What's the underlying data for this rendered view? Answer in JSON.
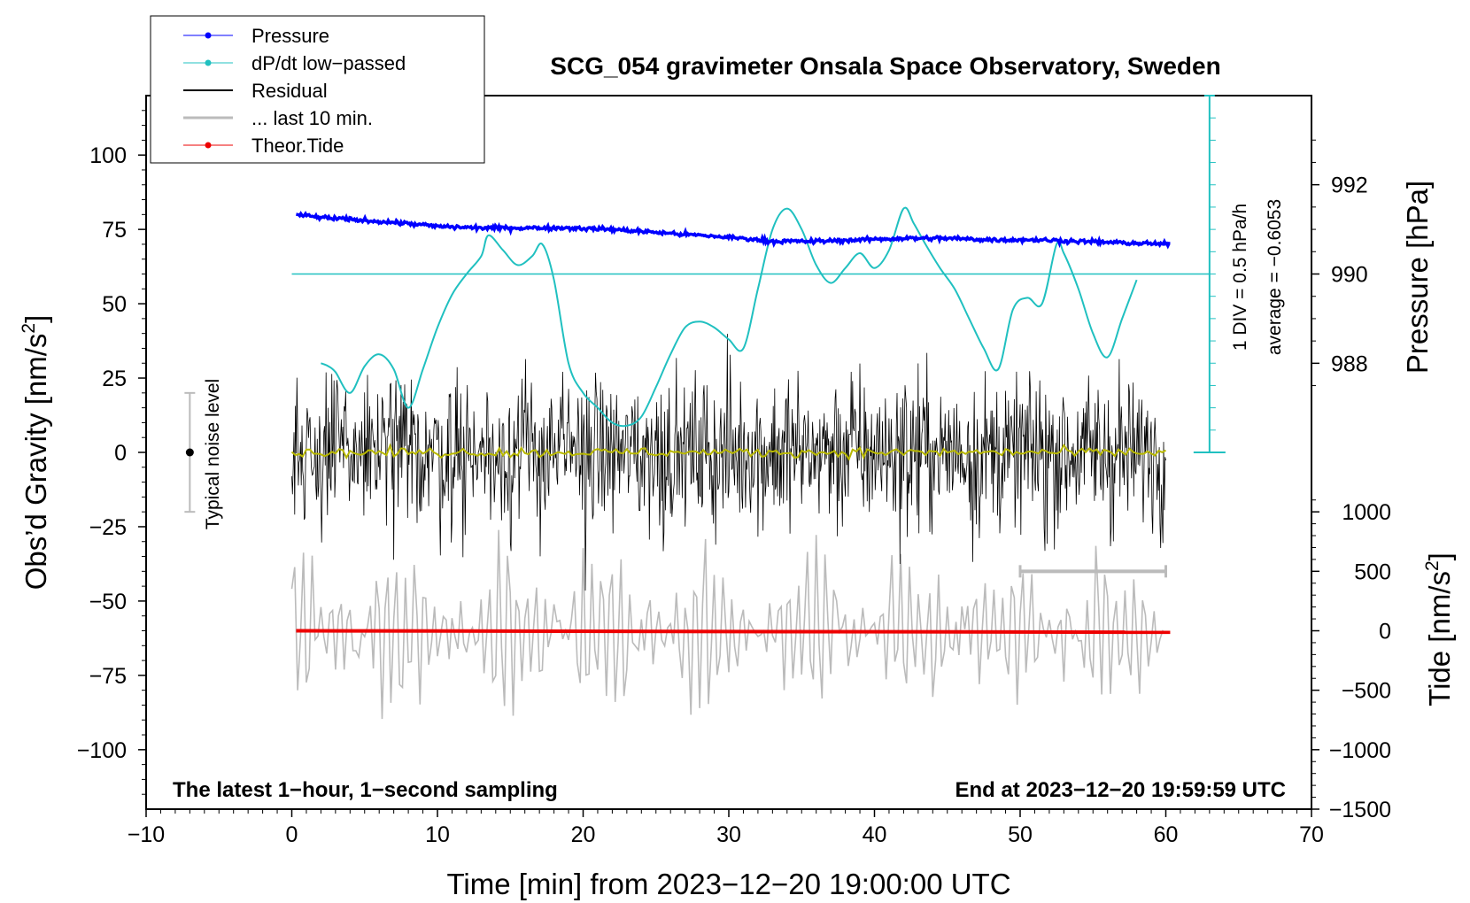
{
  "chart_data": {
    "type": "line",
    "title": "SCG_054 gravimeter Onsala Space Observatory, Sweden",
    "xlabel": "Time [min] from 2023−12−20 19:00:00 UTC",
    "ylabel_left": "Obs’d Gravity [nm/s",
    "ylabel_left_sup": "2",
    "ylabel_left_end": "]",
    "ylabel_right_top": "Pressure [hPa]",
    "ylabel_right_bottom": "Tide [nm/s",
    "ylabel_right_bottom_sup": "2",
    "ylabel_right_bottom_end": "]",
    "xlim": [
      -10,
      70
    ],
    "ylim_left": [
      -120,
      120
    ],
    "xticks": [
      "−10",
      "0",
      "10",
      "20",
      "30",
      "40",
      "50",
      "60",
      "70"
    ],
    "xtick_values": [
      -10,
      0,
      10,
      20,
      30,
      40,
      50,
      60,
      70
    ],
    "yticks_left": [
      "100",
      "75",
      "50",
      "25",
      "0",
      "−25",
      "−50",
      "−75",
      "−100"
    ],
    "ytick_values_left": [
      100,
      75,
      50,
      25,
      0,
      -25,
      -50,
      -75,
      -100
    ],
    "pressure_ticks": [
      "992",
      "990",
      "988"
    ],
    "pressure_tick_values": [
      992,
      990,
      988
    ],
    "pressure_scale": {
      "value_at_gravity_60": 990,
      "hpa_per_gravity_unit": 0.0666
    },
    "tide_ticks": [
      "1000",
      "500",
      "0",
      "−500",
      "−1000",
      "−1500"
    ],
    "tide_tick_values": [
      1000,
      500,
      0,
      -500,
      -1000,
      -1500
    ],
    "tide_scale": {
      "value_at_gravity_minus60": 0,
      "nms2_per_gravity_unit": 25
    },
    "legend": [
      {
        "label": "Pressure",
        "color": "#0000ff",
        "style": "line-dot"
      },
      {
        "label": "dP/dt low−passed",
        "color": "#20c0c0",
        "style": "line-dot"
      },
      {
        "label": "Residual",
        "color": "#000000",
        "style": "line"
      },
      {
        "label": "... last 10 min.",
        "color": "#bbbbbb",
        "style": "thick-line"
      },
      {
        "label": "Theor.Tide",
        "color": "#ee0000",
        "style": "line-dot"
      }
    ],
    "legend_placement": "top-left",
    "annotations": {
      "bottom_left": "The latest 1−hour, 1−second sampling",
      "bottom_right": "End at 2023−12−20 19:59:59 UTC",
      "noise_label": "Typical noise level",
      "noise_range": [
        -20,
        20
      ],
      "noise_x": -7,
      "dpdt_div": "1 DIV = 0.5 hPa/h",
      "dpdt_average": "average = −0.6053",
      "dpdt_scale_x": 63,
      "dpdt_scale_range": [
        0,
        120
      ],
      "dpdt_baseline_gravity": 60,
      "last10_range_x": [
        50,
        60
      ]
    },
    "colors": {
      "pressure": "#0000ff",
      "dpdt": "#20c0c0",
      "residual": "#000000",
      "residual_mean": "#b8b800",
      "last10": "#bbbbbb",
      "tide": "#ee0000"
    },
    "series": [
      {
        "name": "Pressure",
        "x": [
          0.3,
          2,
          5,
          8,
          10,
          13,
          16,
          19,
          22,
          25,
          28,
          31,
          33,
          36,
          39,
          42,
          45,
          48,
          51,
          54,
          57,
          60.3
        ],
        "y": [
          80,
          79,
          78,
          77,
          76,
          75.5,
          75.5,
          75.5,
          75,
          74,
          73,
          72,
          71,
          71,
          71.5,
          72,
          72,
          71.5,
          71.5,
          71,
          70.5,
          70
        ]
      },
      {
        "name": "dP/dt low-passed",
        "x": [
          2,
          2.5,
          3,
          4,
          5,
          6,
          7,
          8,
          9,
          10,
          11,
          12,
          13,
          13.5,
          14.5,
          15.5,
          16.5,
          17.2,
          18,
          19,
          20,
          21,
          22,
          23,
          24,
          25,
          26,
          27,
          28,
          29,
          30,
          31,
          32,
          33,
          34,
          35,
          36,
          37,
          38,
          39,
          40,
          41,
          42,
          42.7,
          43.5,
          44.5,
          45.5,
          46.5,
          47.5,
          48.5,
          49.5,
          50.5,
          51.5,
          52.5,
          53,
          54,
          55,
          56,
          57,
          58
        ],
        "y": [
          30,
          29,
          27,
          20,
          29,
          33,
          28,
          15,
          28,
          42,
          53,
          60,
          66,
          73,
          68,
          63,
          66,
          70,
          58,
          30,
          20,
          15,
          10,
          9,
          12,
          22,
          33,
          42,
          44,
          42,
          38,
          35,
          55,
          75,
          82,
          75,
          63,
          57,
          62,
          67,
          62,
          68,
          82,
          77,
          70,
          62,
          55,
          45,
          35,
          28,
          48,
          52,
          50,
          70,
          67,
          55,
          40,
          32,
          45,
          58
        ]
      }
    ]
  }
}
